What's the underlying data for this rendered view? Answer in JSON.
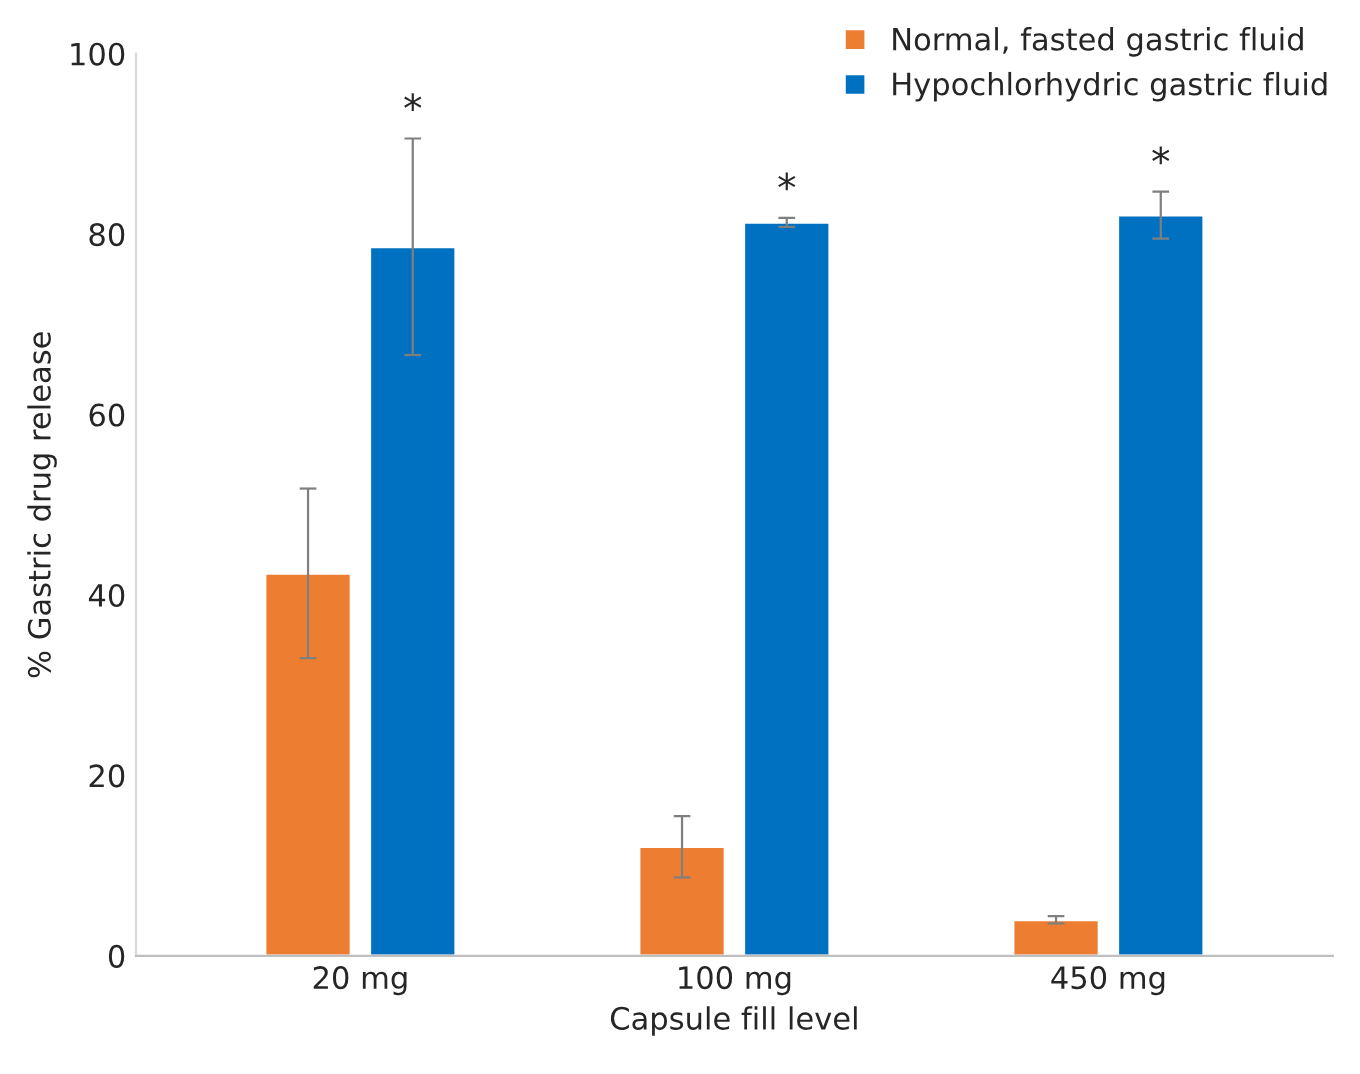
{
  "chart_data": {
    "type": "bar",
    "xlabel": "Capsule fill level",
    "ylabel": "% Gastric drug release",
    "categories": [
      "20 mg",
      "100 mg",
      "450 mg"
    ],
    "series": [
      {
        "name": "Normal, fasted gastric fluid",
        "color": "#ed7d31",
        "values": [
          42.4,
          12.1,
          4.0
        ],
        "errors": [
          9.4,
          3.4,
          0.4
        ]
      },
      {
        "name": "Hypochlorhydric gastric fluid",
        "color": "#0070c0",
        "values": [
          78.6,
          81.3,
          82.1
        ],
        "errors": [
          12.0,
          0.5,
          2.6
        ]
      }
    ],
    "annotations": [
      "*",
      "*",
      "*"
    ],
    "ylim": [
      0,
      100
    ],
    "yticks": [
      0,
      20,
      40,
      60,
      80,
      100
    ],
    "grid": false,
    "legend": "top right"
  }
}
